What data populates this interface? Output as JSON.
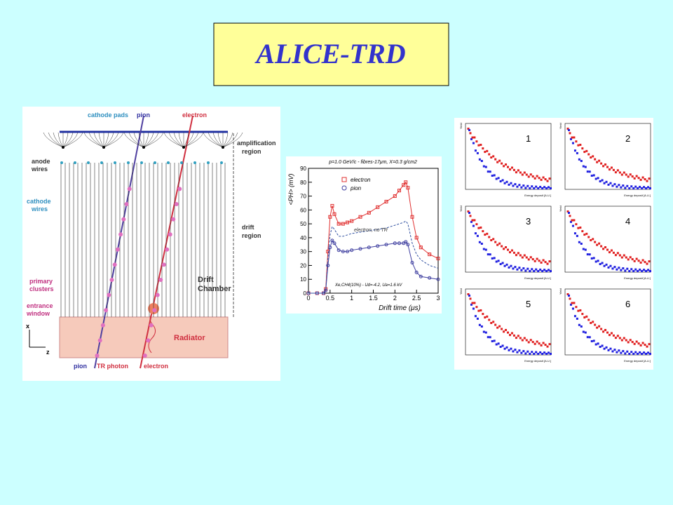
{
  "title": "ALICE-TRD",
  "diagram": {
    "labels": [
      "cathode pads",
      "pion",
      "electron",
      "amplification",
      "region",
      "anode",
      "wires",
      "cathode",
      "wires",
      "drift",
      "region",
      "primary",
      "clusters",
      "Drift",
      "Chamber",
      "entrance",
      "window",
      "Radiator",
      "pion",
      "TR photon",
      "electron",
      "x",
      "z"
    ]
  },
  "chart_data": {
    "type": "line",
    "title": "p=1.0 GeV/c - fibres-17μm, X=0.3 g/cm2",
    "x_label": "Drift time (μs)",
    "y_label": "<PH> (mV)",
    "annotation": "Xe,CH4(10%) - Ud=-4.2, Ua=1.6 kV",
    "x": [
      0,
      0.2,
      0.35,
      0.4,
      0.45,
      0.5,
      0.55,
      0.6,
      0.7,
      0.8,
      0.9,
      1.0,
      1.2,
      1.4,
      1.6,
      1.8,
      2.0,
      2.1,
      2.2,
      2.25,
      2.3,
      2.4,
      2.5,
      2.6,
      2.8,
      3.0
    ],
    "series": [
      {
        "name": "electron",
        "color": "#e03030",
        "marker": "square",
        "values": [
          0,
          0,
          0,
          3,
          30,
          55,
          63,
          57,
          50,
          50,
          51,
          52,
          55,
          58,
          62,
          66,
          70,
          74,
          78,
          80,
          76,
          55,
          40,
          33,
          28,
          25
        ]
      },
      {
        "name": "pion",
        "color": "#4040a0",
        "marker": "circle",
        "values": [
          0,
          0,
          0,
          2,
          20,
          33,
          38,
          36,
          31,
          30,
          30,
          31,
          32,
          33,
          34,
          35,
          36,
          36,
          36,
          37,
          35,
          22,
          15,
          12,
          11,
          10
        ]
      },
      {
        "name": "electron, no TR",
        "color": "#3050a0",
        "marker": "dashed",
        "values": [
          0,
          0,
          0,
          2,
          25,
          42,
          48,
          46,
          41,
          41,
          42,
          43,
          44,
          45,
          46,
          47,
          49,
          50,
          51,
          52,
          50,
          36,
          28,
          24,
          20,
          18
        ]
      }
    ],
    "xlim": [
      0,
      3
    ],
    "xticks": [
      0,
      0.5,
      1,
      1.5,
      2,
      2.5,
      3
    ],
    "ylim": [
      0,
      90
    ],
    "yticks": [
      0,
      10,
      20,
      30,
      40,
      50,
      60,
      70,
      80,
      90
    ]
  },
  "panels": {
    "numbers": [
      "1",
      "2",
      "3",
      "4",
      "5",
      "6"
    ],
    "x_label": "Energy deposit [A.U.]",
    "y_label": "Yield"
  }
}
